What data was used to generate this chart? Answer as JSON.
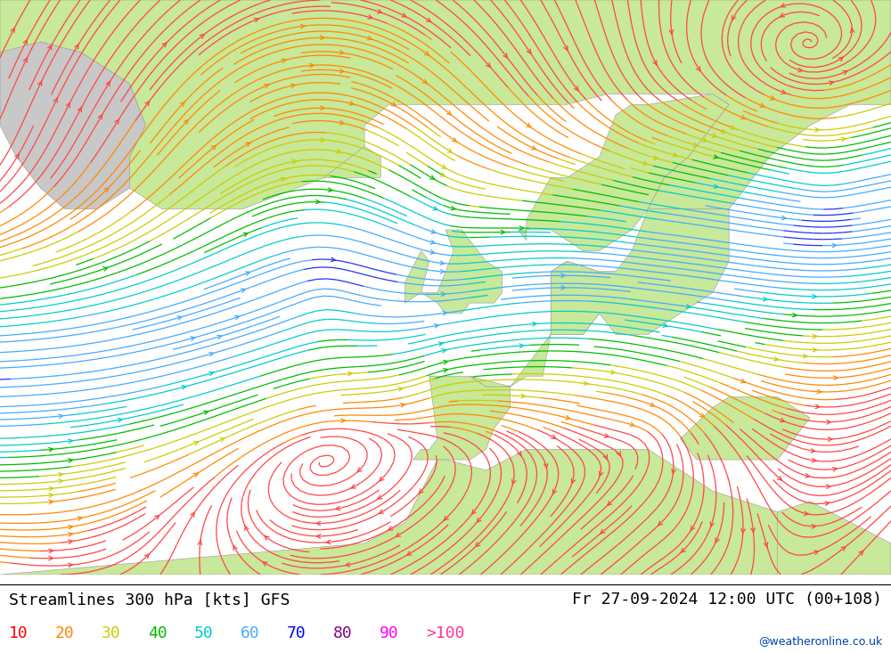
{
  "title_left": "Streamlines 300 hPa [kts] GFS",
  "title_right": "Fr 27-09-2024 12:00 UTC (00+108)",
  "legend_values": [
    "10",
    "20",
    "30",
    "40",
    "50",
    "60",
    "70",
    "80",
    "90",
    ">100"
  ],
  "legend_colors": [
    "#ff0000",
    "#ff8800",
    "#cccc00",
    "#00bb00",
    "#00cccc",
    "#44aaff",
    "#0000ee",
    "#880088",
    "#ff00ff",
    "#ff3399"
  ],
  "background_land_color": "#c8e89a",
  "background_sea_color": "#eeeeee",
  "coast_color": "#999999",
  "watermark": "@weatheronline.co.uk",
  "fig_width": 10.0,
  "fig_height": 7.33,
  "speed_bounds": [
    0,
    10,
    20,
    30,
    40,
    50,
    60,
    70,
    80,
    90,
    300
  ],
  "speed_colors": [
    "#ff4444",
    "#ff8800",
    "#cccc00",
    "#00bb00",
    "#00cccc",
    "#44aaff",
    "#2233ee",
    "#880099",
    "#ee00ee",
    "#ff3399"
  ]
}
